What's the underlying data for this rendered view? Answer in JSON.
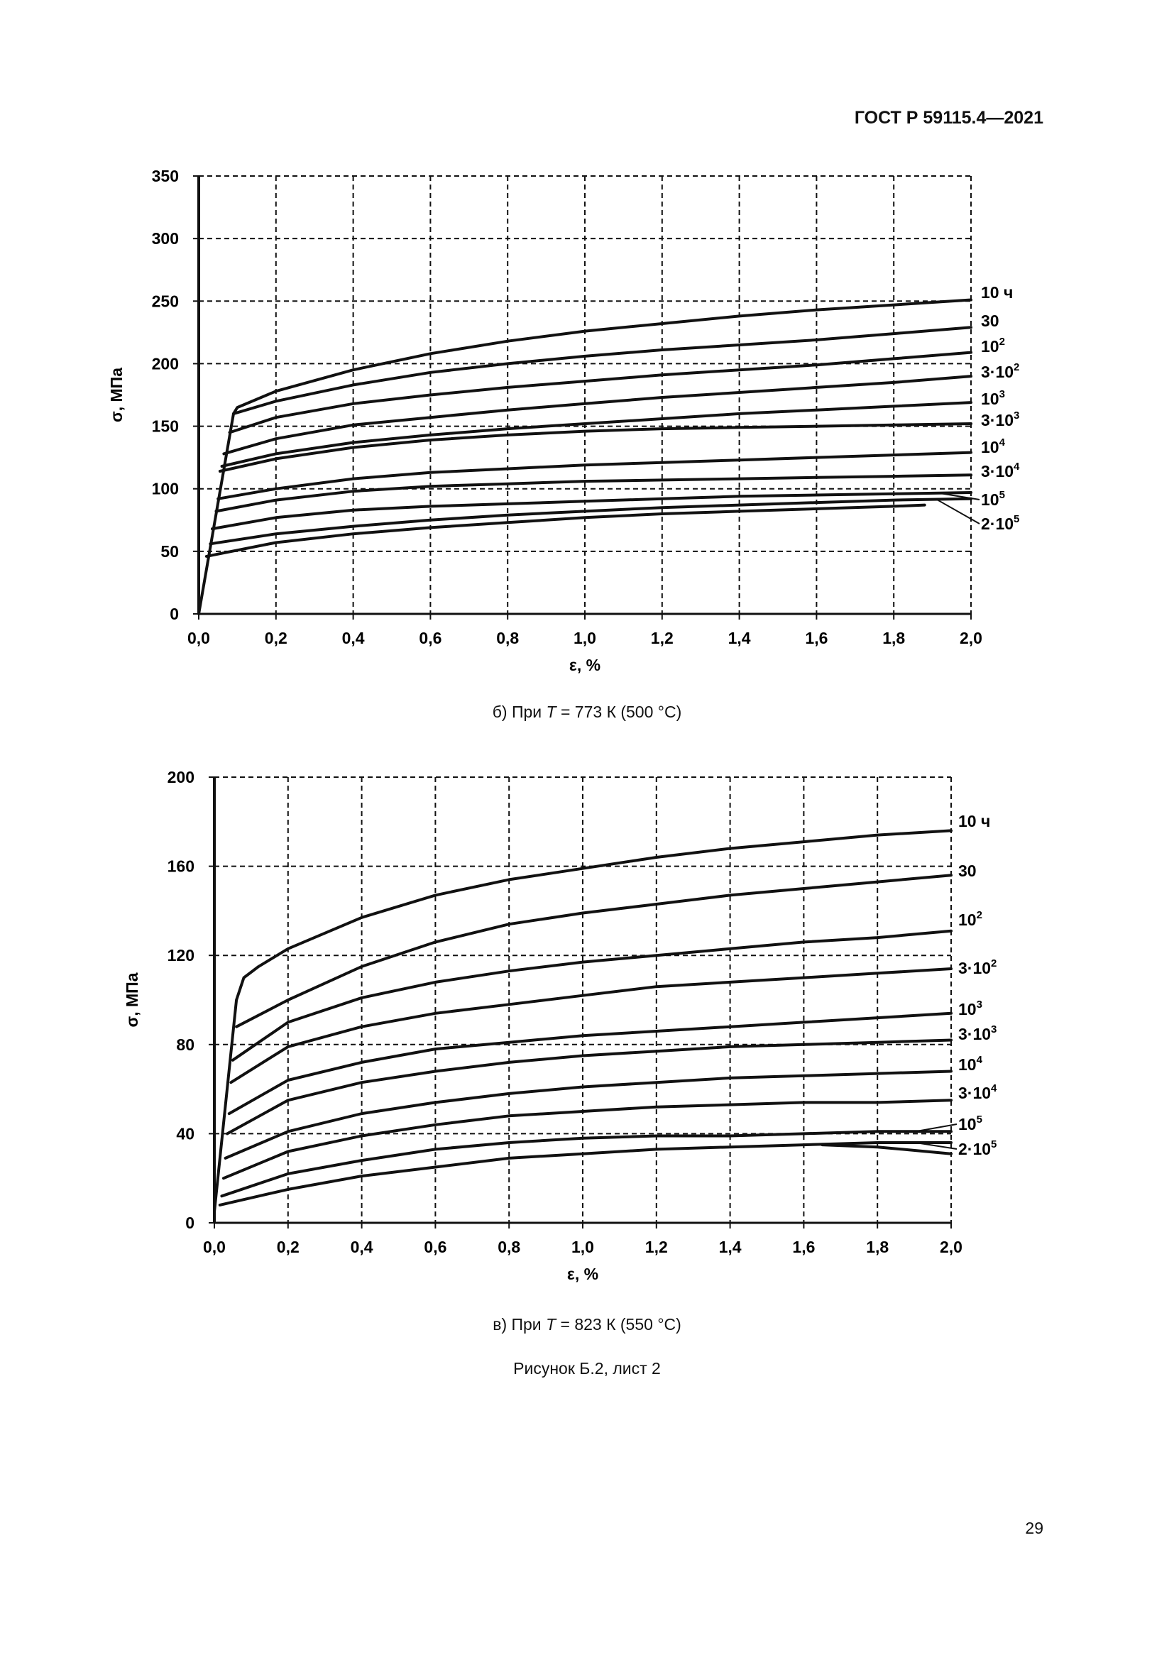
{
  "header": {
    "document_id": "ГОСТ Р 59115.4—2021"
  },
  "charts": [
    {
      "caption_prefix": "б) При ",
      "caption_var": "T",
      "caption_suffix": " = 773 К (500 °C)"
    },
    {
      "caption_prefix": "в) При ",
      "caption_var": "T",
      "caption_suffix": " = 823 К (550 °C)"
    }
  ],
  "figure_caption": "Рисунок Б.2, лист 2",
  "page_number": "29",
  "chart_data": [
    {
      "type": "line",
      "xlabel": "ε, %",
      "ylabel": "σ, МПа",
      "xlim": [
        0,
        2.0
      ],
      "ylim": [
        0,
        350
      ],
      "x_ticks": [
        "0,0",
        "0,2",
        "0,4",
        "0,6",
        "0,8",
        "1,0",
        "1,2",
        "1,4",
        "1,6",
        "1,8",
        "2,0"
      ],
      "y_ticks": [
        "0",
        "50",
        "100",
        "150",
        "200",
        "250",
        "300",
        "350"
      ],
      "grid": true,
      "grid_style": "dashed",
      "series": [
        {
          "name": "10 ч",
          "label_main": "10 ч",
          "label_sup": "",
          "x": [
            0,
            0.09,
            0.1,
            0.2,
            0.4,
            0.6,
            0.8,
            1.0,
            1.2,
            1.4,
            1.6,
            1.8,
            2.0
          ],
          "y": [
            0,
            160,
            165,
            178,
            195,
            208,
            218,
            226,
            232,
            238,
            243,
            247,
            251
          ]
        },
        {
          "name": "30",
          "label_main": "30",
          "label_sup": "",
          "x": [
            0.09,
            0.2,
            0.4,
            0.6,
            0.8,
            1.0,
            1.2,
            1.4,
            1.6,
            1.8,
            2.0
          ],
          "y": [
            160,
            170,
            183,
            193,
            200,
            206,
            211,
            215,
            219,
            224,
            229
          ]
        },
        {
          "name": "10²",
          "label_main": "10",
          "label_sup": "2",
          "x": [
            0.08,
            0.2,
            0.4,
            0.6,
            0.8,
            1.0,
            1.2,
            1.4,
            1.6,
            1.8,
            2.0
          ],
          "y": [
            145,
            157,
            168,
            175,
            181,
            186,
            191,
            195,
            199,
            204,
            209
          ]
        },
        {
          "name": "3·10²",
          "label_main": "3·10",
          "label_sup": "2",
          "x": [
            0.065,
            0.2,
            0.4,
            0.6,
            0.8,
            1.0,
            1.2,
            1.4,
            1.6,
            1.8,
            2.0
          ],
          "y": [
            128,
            140,
            151,
            157,
            163,
            168,
            173,
            177,
            181,
            185,
            190
          ]
        },
        {
          "name": "10³",
          "label_main": "10",
          "label_sup": "3",
          "x": [
            0.06,
            0.2,
            0.4,
            0.6,
            0.8,
            1.0,
            1.2,
            1.4,
            1.6,
            1.8,
            2.0
          ],
          "y": [
            118,
            128,
            137,
            143,
            148,
            152,
            156,
            160,
            163,
            166,
            169
          ]
        },
        {
          "name": "3·10³",
          "label_main": "3·10",
          "label_sup": "3",
          "x": [
            0.055,
            0.2,
            0.4,
            0.6,
            0.8,
            1.0,
            1.2,
            1.4,
            1.6,
            1.8,
            2.0
          ],
          "y": [
            114,
            124,
            133,
            139,
            143,
            146,
            148,
            149,
            150,
            151,
            152
          ]
        },
        {
          "name": "10⁴",
          "label_main": "10",
          "label_sup": "4",
          "x": [
            0.05,
            0.2,
            0.4,
            0.6,
            0.8,
            1.0,
            1.2,
            1.4,
            1.6,
            1.8,
            2.0
          ],
          "y": [
            92,
            100,
            108,
            113,
            116,
            119,
            121,
            123,
            125,
            127,
            129
          ]
        },
        {
          "name": "3·10⁴",
          "label_main": "3·10",
          "label_sup": "4",
          "x": [
            0.045,
            0.2,
            0.4,
            0.6,
            0.8,
            1.0,
            1.2,
            1.4,
            1.6,
            1.8,
            2.0
          ],
          "y": [
            82,
            91,
            98,
            102,
            104,
            106,
            107,
            108,
            109,
            110,
            111
          ]
        },
        {
          "name": "10⁵",
          "label_main": "10",
          "label_sup": "5",
          "x": [
            0.035,
            0.2,
            0.4,
            0.6,
            0.8,
            1.0,
            1.2,
            1.4,
            1.6,
            1.8,
            2.0
          ],
          "y": [
            68,
            77,
            83,
            86,
            88,
            90,
            92,
            94,
            95,
            96,
            97
          ]
        },
        {
          "name": "2·10⁵",
          "label_main": "2·10",
          "label_sup": "5",
          "x": [
            0.03,
            0.2,
            0.4,
            0.6,
            0.8,
            1.0,
            1.2,
            1.4,
            1.6,
            1.8,
            2.0
          ],
          "y": [
            56,
            64,
            70,
            75,
            79,
            82,
            85,
            87,
            89,
            91,
            92
          ]
        },
        {
          "name": "",
          "x": [
            0.02,
            0.2,
            0.4,
            0.6,
            0.8,
            1.0,
            1.2,
            1.4,
            1.6,
            1.8,
            1.88
          ],
          "y": [
            46,
            57,
            64,
            69,
            73,
            77,
            80,
            82,
            84,
            86,
            87
          ]
        }
      ]
    },
    {
      "type": "line",
      "xlabel": "ε, %",
      "ylabel": "σ, МПа",
      "xlim": [
        0,
        2.0
      ],
      "ylim": [
        0,
        200
      ],
      "x_ticks": [
        "0,0",
        "0,2",
        "0,4",
        "0,6",
        "0,8",
        "1,0",
        "1,2",
        "1,4",
        "1,6",
        "1,8",
        "2,0"
      ],
      "y_ticks": [
        "0",
        "40",
        "80",
        "120",
        "160",
        "200"
      ],
      "grid": true,
      "grid_style": "dashed",
      "series": [
        {
          "name": "10 ч",
          "label_main": "10 ч",
          "label_sup": "",
          "x": [
            0,
            0.06,
            0.08,
            0.12,
            0.2,
            0.4,
            0.6,
            0.8,
            1.0,
            1.2,
            1.4,
            1.6,
            1.8,
            2.0
          ],
          "y": [
            5,
            100,
            110,
            115,
            123,
            137,
            147,
            154,
            159,
            164,
            168,
            171,
            174,
            176
          ]
        },
        {
          "name": "30",
          "label_main": "30",
          "label_sup": "",
          "x": [
            0.06,
            0.2,
            0.4,
            0.6,
            0.8,
            1.0,
            1.2,
            1.4,
            1.6,
            1.8,
            2.0
          ],
          "y": [
            88,
            100,
            115,
            126,
            134,
            139,
            143,
            147,
            150,
            153,
            156
          ]
        },
        {
          "name": "10²",
          "label_main": "10",
          "label_sup": "2",
          "x": [
            0.05,
            0.2,
            0.4,
            0.6,
            0.8,
            1.0,
            1.2,
            1.4,
            1.6,
            1.8,
            2.0
          ],
          "y": [
            73,
            90,
            101,
            108,
            113,
            117,
            120,
            123,
            126,
            128,
            131
          ]
        },
        {
          "name": "3·10²",
          "label_main": "3·10",
          "label_sup": "2",
          "x": [
            0.045,
            0.2,
            0.4,
            0.6,
            0.8,
            1.0,
            1.2,
            1.4,
            1.6,
            1.8,
            2.0
          ],
          "y": [
            63,
            79,
            88,
            94,
            98,
            102,
            106,
            108,
            110,
            112,
            114
          ]
        },
        {
          "name": "10³",
          "label_main": "10",
          "label_sup": "3",
          "x": [
            0.04,
            0.2,
            0.4,
            0.6,
            0.8,
            1.0,
            1.2,
            1.4,
            1.6,
            1.8,
            2.0
          ],
          "y": [
            49,
            64,
            72,
            78,
            81,
            84,
            86,
            88,
            90,
            92,
            94
          ]
        },
        {
          "name": "3·10³",
          "label_main": "3·10",
          "label_sup": "3",
          "x": [
            0.035,
            0.2,
            0.4,
            0.6,
            0.8,
            1.0,
            1.2,
            1.4,
            1.6,
            1.8,
            2.0
          ],
          "y": [
            40,
            55,
            63,
            68,
            72,
            75,
            77,
            79,
            80,
            81,
            82
          ]
        },
        {
          "name": "10⁴",
          "label_main": "10",
          "label_sup": "4",
          "x": [
            0.03,
            0.2,
            0.4,
            0.6,
            0.8,
            1.0,
            1.2,
            1.4,
            1.6,
            1.8,
            2.0
          ],
          "y": [
            29,
            41,
            49,
            54,
            58,
            61,
            63,
            65,
            66,
            67,
            68
          ]
        },
        {
          "name": "3·10⁴",
          "label_main": "3·10",
          "label_sup": "4",
          "x": [
            0.025,
            0.2,
            0.4,
            0.6,
            0.8,
            1.0,
            1.2,
            1.4,
            1.6,
            1.8,
            2.0
          ],
          "y": [
            20,
            32,
            39,
            44,
            48,
            50,
            52,
            53,
            54,
            54,
            55
          ]
        },
        {
          "name": "10⁵",
          "label_main": "10",
          "label_sup": "5",
          "x": [
            0.02,
            0.2,
            0.4,
            0.6,
            0.8,
            1.0,
            1.2,
            1.4,
            1.6,
            1.8,
            2.0
          ],
          "y": [
            12,
            22,
            28,
            33,
            36,
            38,
            39,
            39,
            40,
            41,
            41
          ]
        },
        {
          "name": "2·10⁵",
          "label_main": "2·10",
          "label_sup": "5",
          "x": [
            0.015,
            0.2,
            0.4,
            0.6,
            0.8,
            1.0,
            1.2,
            1.4,
            1.6,
            1.8,
            2.0
          ],
          "y": [
            8,
            15,
            21,
            25,
            29,
            31,
            33,
            34,
            35,
            36,
            36
          ]
        },
        {
          "name": "",
          "x": [
            1.65,
            1.8,
            2.0
          ],
          "y": [
            35,
            34,
            31
          ]
        }
      ]
    }
  ]
}
